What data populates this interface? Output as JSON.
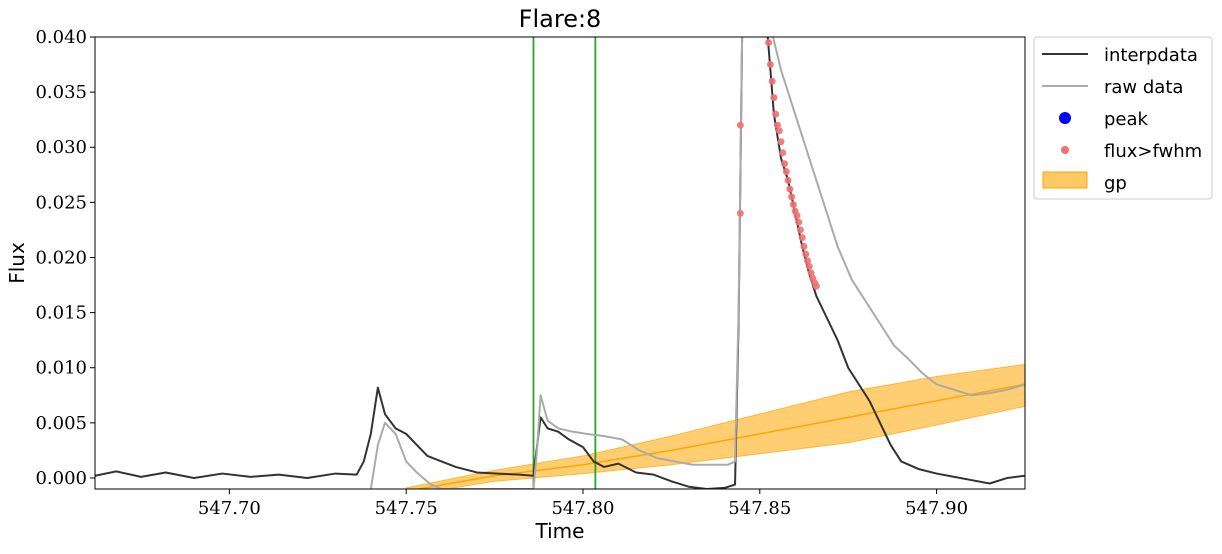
{
  "chart_data": {
    "type": "line",
    "title": "Flare:8",
    "xlabel": "Time",
    "ylabel": "Flux",
    "xlim": [
      547.662,
      547.925
    ],
    "ylim": [
      -0.001,
      0.04
    ],
    "x_ticks": [
      547.7,
      547.75,
      547.8,
      547.85,
      547.9
    ],
    "x_tick_labels": [
      "547.70",
      "547.75",
      "547.80",
      "547.85",
      "547.90"
    ],
    "y_ticks": [
      0.0,
      0.005,
      0.01,
      0.015,
      0.02,
      0.025,
      0.03,
      0.035,
      0.04
    ],
    "y_tick_labels": [
      "0.000",
      "0.005",
      "0.010",
      "0.015",
      "0.020",
      "0.025",
      "0.030",
      "0.035",
      "0.040"
    ],
    "grid": false,
    "legend_position": "outside-right-top",
    "vlines": [
      547.786,
      547.8035
    ],
    "series": [
      {
        "name": "interpdata",
        "kind": "line",
        "color": "#333333",
        "points": [
          [
            547.662,
            0.0002
          ],
          [
            547.668,
            0.0006
          ],
          [
            547.675,
            0.0001
          ],
          [
            547.682,
            0.0005
          ],
          [
            547.69,
            0.0
          ],
          [
            547.698,
            0.0004
          ],
          [
            547.706,
            0.0001
          ],
          [
            547.714,
            0.0003
          ],
          [
            547.722,
            0.0
          ],
          [
            547.73,
            0.0004
          ],
          [
            547.736,
            0.0003
          ],
          [
            547.738,
            0.0015
          ],
          [
            547.74,
            0.004
          ],
          [
            547.742,
            0.0082
          ],
          [
            547.744,
            0.0058
          ],
          [
            547.747,
            0.0045
          ],
          [
            547.75,
            0.004
          ],
          [
            547.753,
            0.003
          ],
          [
            547.756,
            0.002
          ],
          [
            547.76,
            0.0015
          ],
          [
            547.764,
            0.001
          ],
          [
            547.77,
            0.0005
          ],
          [
            547.776,
            0.0004
          ],
          [
            547.782,
            0.0003
          ],
          [
            547.786,
            0.0002
          ],
          [
            547.788,
            0.0055
          ],
          [
            547.79,
            0.0045
          ],
          [
            547.793,
            0.0042
          ],
          [
            547.796,
            0.0035
          ],
          [
            547.8,
            0.0028
          ],
          [
            547.803,
            0.0015
          ],
          [
            547.806,
            0.001
          ],
          [
            547.81,
            0.0013
          ],
          [
            547.815,
            0.0005
          ],
          [
            547.82,
            0.0003
          ],
          [
            547.825,
            -0.0003
          ],
          [
            547.83,
            -0.0008
          ],
          [
            547.835,
            -0.001
          ],
          [
            547.84,
            -0.0009
          ],
          [
            547.843,
            -0.0006
          ],
          [
            547.844,
            0.014
          ],
          [
            547.845,
            0.04
          ],
          [
            547.852,
            0.041
          ],
          [
            547.854,
            0.033
          ],
          [
            547.856,
            0.029
          ],
          [
            547.858,
            0.027
          ],
          [
            547.86,
            0.024
          ],
          [
            547.862,
            0.021
          ],
          [
            547.864,
            0.0185
          ],
          [
            547.866,
            0.0165
          ],
          [
            547.869,
            0.0145
          ],
          [
            547.872,
            0.0125
          ],
          [
            547.875,
            0.01
          ],
          [
            547.878,
            0.0085
          ],
          [
            547.881,
            0.007
          ],
          [
            547.884,
            0.005
          ],
          [
            547.887,
            0.003
          ],
          [
            547.89,
            0.0015
          ],
          [
            547.895,
            0.0008
          ],
          [
            547.9,
            0.0004
          ],
          [
            547.905,
            0.0001
          ],
          [
            547.91,
            -0.0002
          ],
          [
            547.915,
            -0.0005
          ],
          [
            547.92,
            0.0
          ],
          [
            547.925,
            0.0002
          ]
        ]
      },
      {
        "name": "raw data",
        "kind": "line",
        "color": "#aaaaaa",
        "points": [
          [
            547.74,
            -0.001
          ],
          [
            547.742,
            0.003
          ],
          [
            547.744,
            0.005
          ],
          [
            547.747,
            0.004
          ],
          [
            547.75,
            0.0015
          ],
          [
            547.753,
            0.0005
          ],
          [
            547.757,
            -0.0006
          ],
          [
            547.76,
            -0.001
          ],
          [
            547.786,
            -0.001
          ],
          [
            547.787,
            0.0025
          ],
          [
            547.788,
            0.0075
          ],
          [
            547.79,
            0.0052
          ],
          [
            547.793,
            0.0045
          ],
          [
            547.797,
            0.0042
          ],
          [
            547.801,
            0.004
          ],
          [
            547.806,
            0.0038
          ],
          [
            547.811,
            0.0035
          ],
          [
            547.816,
            0.0025
          ],
          [
            547.821,
            0.0018
          ],
          [
            547.826,
            0.0015
          ],
          [
            547.831,
            0.0012
          ],
          [
            547.836,
            0.0012
          ],
          [
            547.841,
            0.0012
          ],
          [
            547.843,
            0.0015
          ],
          [
            547.844,
            0.015
          ],
          [
            547.845,
            0.04
          ],
          [
            547.853,
            0.041
          ],
          [
            547.856,
            0.037
          ],
          [
            547.86,
            0.033
          ],
          [
            547.864,
            0.029
          ],
          [
            547.868,
            0.025
          ],
          [
            547.872,
            0.021
          ],
          [
            547.876,
            0.018
          ],
          [
            547.88,
            0.016
          ],
          [
            547.884,
            0.014
          ],
          [
            547.888,
            0.012
          ],
          [
            547.892,
            0.0108
          ],
          [
            547.896,
            0.0095
          ],
          [
            547.9,
            0.0085
          ],
          [
            547.905,
            0.008
          ],
          [
            547.91,
            0.0075
          ],
          [
            547.915,
            0.0077
          ],
          [
            547.92,
            0.008
          ],
          [
            547.925,
            0.0085
          ]
        ]
      },
      {
        "name": "peak",
        "kind": "marker",
        "color": "#0000ff",
        "points": []
      },
      {
        "name": "flux>fwhm",
        "kind": "scatter",
        "color": "#f07070",
        "points": [
          [
            547.8445,
            0.032
          ],
          [
            547.8445,
            0.024
          ],
          [
            547.8525,
            0.0395
          ],
          [
            547.853,
            0.0375
          ],
          [
            547.8535,
            0.036
          ],
          [
            547.854,
            0.0345
          ],
          [
            547.8545,
            0.033
          ],
          [
            547.855,
            0.032
          ],
          [
            547.8555,
            0.0315
          ],
          [
            547.856,
            0.0305
          ],
          [
            547.8565,
            0.0295
          ],
          [
            547.857,
            0.0285
          ],
          [
            547.8575,
            0.0278
          ],
          [
            547.858,
            0.027
          ],
          [
            547.8585,
            0.0262
          ],
          [
            547.859,
            0.0255
          ],
          [
            547.8595,
            0.0248
          ],
          [
            547.86,
            0.0242
          ],
          [
            547.8605,
            0.0238
          ],
          [
            547.861,
            0.0232
          ],
          [
            547.8615,
            0.0225
          ],
          [
            547.862,
            0.0218
          ],
          [
            547.8625,
            0.021
          ],
          [
            547.863,
            0.0203
          ],
          [
            547.8635,
            0.0197
          ],
          [
            547.864,
            0.0192
          ],
          [
            547.8645,
            0.0186
          ],
          [
            547.865,
            0.0181
          ],
          [
            547.8655,
            0.0177
          ],
          [
            547.866,
            0.0174
          ]
        ]
      },
      {
        "name": "gp",
        "kind": "band",
        "color": "#ffa500",
        "mean": [
          [
            547.75,
            -0.0012
          ],
          [
            547.775,
            0.0002
          ],
          [
            547.8,
            0.0012
          ],
          [
            547.825,
            0.0025
          ],
          [
            547.85,
            0.004
          ],
          [
            547.875,
            0.0055
          ],
          [
            547.9,
            0.007
          ],
          [
            547.925,
            0.0085
          ]
        ],
        "upper": [
          [
            547.75,
            -0.0009
          ],
          [
            547.775,
            0.0007
          ],
          [
            547.8,
            0.002
          ],
          [
            547.825,
            0.0038
          ],
          [
            547.85,
            0.0058
          ],
          [
            547.875,
            0.0078
          ],
          [
            547.9,
            0.0092
          ],
          [
            547.925,
            0.0103
          ]
        ],
        "lower": [
          [
            547.75,
            -0.0016
          ],
          [
            547.775,
            -0.0003
          ],
          [
            547.8,
            0.0004
          ],
          [
            547.825,
            0.0012
          ],
          [
            547.85,
            0.0022
          ],
          [
            547.875,
            0.0032
          ],
          [
            547.9,
            0.0048
          ],
          [
            547.925,
            0.0065
          ]
        ]
      }
    ]
  }
}
